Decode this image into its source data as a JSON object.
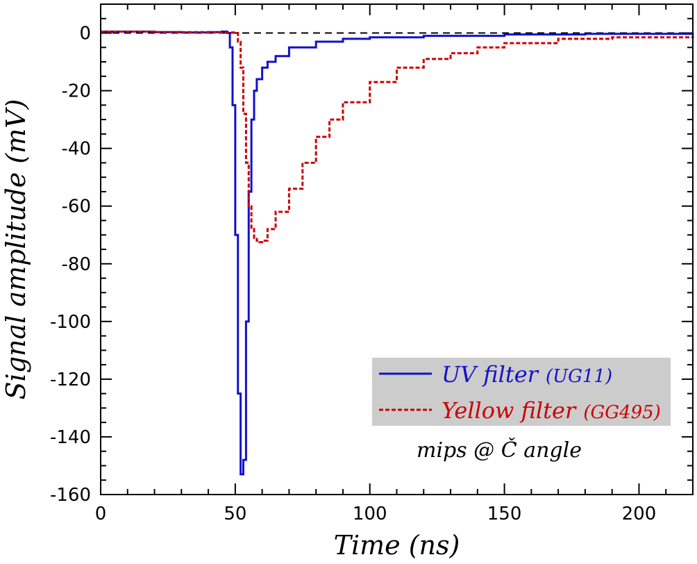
{
  "chart_data": {
    "type": "line",
    "xlabel": "Time (ns)",
    "ylabel": "Signal amplitude (mV)",
    "xlim": [
      0,
      220
    ],
    "ylim": [
      -160,
      10
    ],
    "x_ticks": [
      0,
      50,
      100,
      150,
      200
    ],
    "y_ticks": [
      0,
      -20,
      -40,
      -60,
      -80,
      -100,
      -120,
      -140,
      -160
    ],
    "grid": false,
    "zero_line": true,
    "legend_placement": "lower-right",
    "series": [
      {
        "name": "UV filter",
        "name_suffix": "(UG11)",
        "color": "#1111cc",
        "style": "solid",
        "x": [
          0,
          10,
          20,
          30,
          40,
          45,
          47,
          48,
          49,
          50,
          51,
          52,
          53,
          54,
          55,
          56,
          57,
          58,
          60,
          62,
          65,
          70,
          80,
          90,
          100,
          120,
          150,
          180,
          220
        ],
        "y": [
          0.5,
          0.5,
          0.3,
          0.2,
          0.3,
          0.5,
          0,
          -5,
          -25,
          -70,
          -125,
          -153,
          -148,
          -100,
          -55,
          -30,
          -20,
          -16,
          -12,
          -10,
          -8,
          -5,
          -3,
          -2,
          -1.5,
          -1,
          -0.5,
          -0.3,
          -0.2
        ]
      },
      {
        "name": "Yellow filter",
        "name_suffix": "(GG495)",
        "color": "#cc0000",
        "style": "dashed",
        "x": [
          0,
          20,
          40,
          50,
          51,
          52,
          53,
          54,
          55,
          56,
          57,
          58,
          59,
          60,
          62,
          65,
          70,
          75,
          80,
          85,
          90,
          100,
          110,
          120,
          130,
          140,
          150,
          170,
          190,
          220
        ],
        "y": [
          0.5,
          0.3,
          0.2,
          0,
          -3,
          -12,
          -28,
          -45,
          -60,
          -68,
          -71,
          -72,
          -72.5,
          -72,
          -68,
          -62,
          -54,
          -45,
          -36,
          -30,
          -24,
          -17,
          -12,
          -9,
          -7,
          -5,
          -3.5,
          -2,
          -1.5,
          -1
        ]
      }
    ],
    "annotation": "mips @ Č angle"
  }
}
